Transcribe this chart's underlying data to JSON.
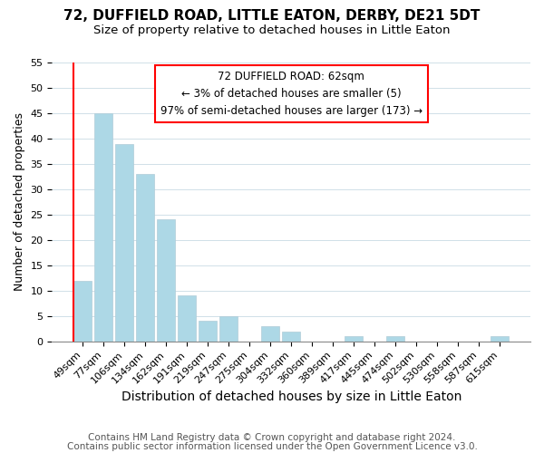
{
  "title": "72, DUFFIELD ROAD, LITTLE EATON, DERBY, DE21 5DT",
  "subtitle": "Size of property relative to detached houses in Little Eaton",
  "xlabel": "Distribution of detached houses by size in Little Eaton",
  "ylabel": "Number of detached properties",
  "bar_color": "#add8e6",
  "categories": [
    "49sqm",
    "77sqm",
    "106sqm",
    "134sqm",
    "162sqm",
    "191sqm",
    "219sqm",
    "247sqm",
    "275sqm",
    "304sqm",
    "332sqm",
    "360sqm",
    "389sqm",
    "417sqm",
    "445sqm",
    "474sqm",
    "502sqm",
    "530sqm",
    "558sqm",
    "587sqm",
    "615sqm"
  ],
  "values": [
    12,
    45,
    39,
    33,
    24,
    9,
    4,
    5,
    0,
    3,
    2,
    0,
    0,
    1,
    0,
    1,
    0,
    0,
    0,
    0,
    1
  ],
  "highlight_index": 0,
  "ylim": [
    0,
    55
  ],
  "yticks": [
    0,
    5,
    10,
    15,
    20,
    25,
    30,
    35,
    40,
    45,
    50,
    55
  ],
  "annotation_title": "72 DUFFIELD ROAD: 62sqm",
  "annotation_line1": "← 3% of detached houses are smaller (5)",
  "annotation_line2": "97% of semi-detached houses are larger (173) →",
  "footer1": "Contains HM Land Registry data © Crown copyright and database right 2024.",
  "footer2": "Contains public sector information licensed under the Open Government Licence v3.0.",
  "title_fontsize": 11,
  "subtitle_fontsize": 9.5,
  "xlabel_fontsize": 10,
  "ylabel_fontsize": 9,
  "tick_fontsize": 8,
  "annot_fontsize": 8.5,
  "footer_fontsize": 7.5
}
